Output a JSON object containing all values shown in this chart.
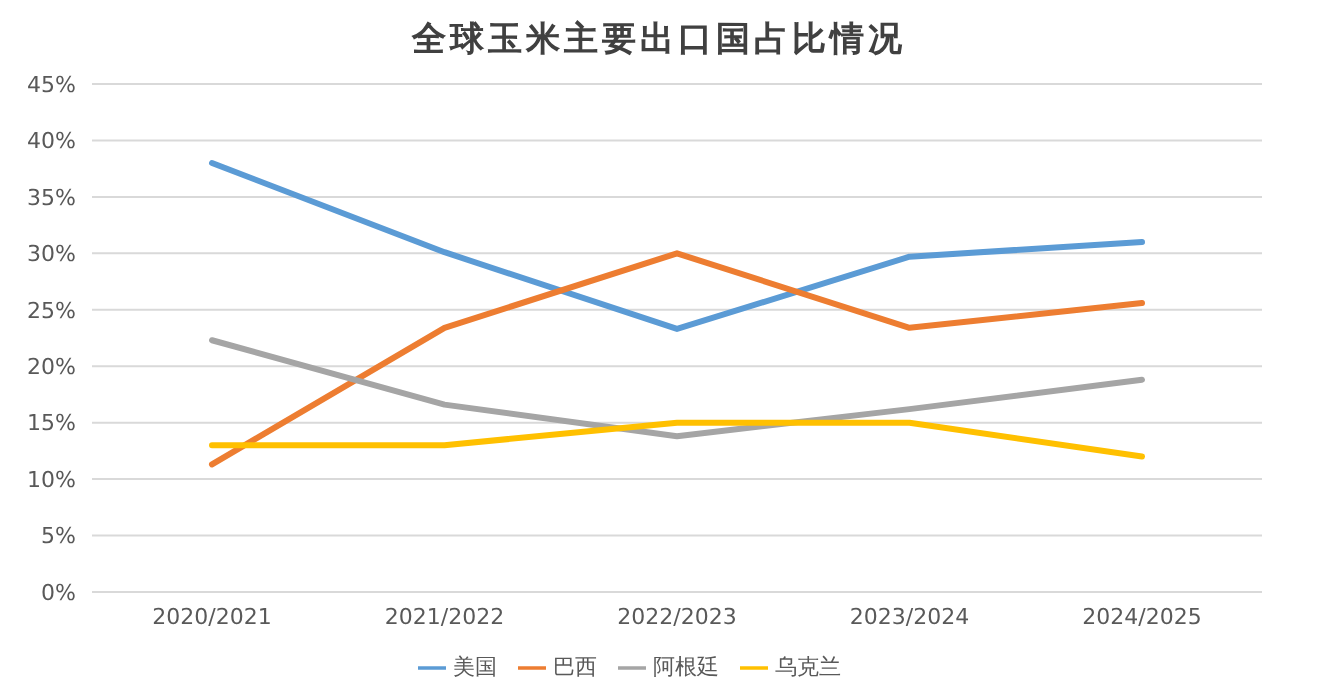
{
  "chart_data": {
    "type": "line",
    "title": "全球玉米主要出口国占比情况",
    "categories": [
      "2020/2021",
      "2021/2022",
      "2022/2023",
      "2023/2024",
      "2024/2025"
    ],
    "series": [
      {
        "name": "美国",
        "color": "#5b9bd5",
        "values": [
          38,
          30.1,
          23.3,
          29.7,
          31
        ]
      },
      {
        "name": "巴西",
        "color": "#ed7d31",
        "values": [
          11.3,
          23.4,
          30,
          23.4,
          25.6
        ]
      },
      {
        "name": "阿根廷",
        "color": "#a5a5a5",
        "values": [
          22.3,
          16.6,
          13.8,
          16.2,
          18.8
        ]
      },
      {
        "name": "乌克兰",
        "color": "#ffc000",
        "values": [
          13,
          13,
          15,
          15,
          12
        ]
      }
    ],
    "ylim": [
      0,
      45
    ],
    "yticks": [
      {
        "value": 0,
        "label": "0%"
      },
      {
        "value": 5,
        "label": "5%"
      },
      {
        "value": 10,
        "label": "10%"
      },
      {
        "value": 15,
        "label": "15%"
      },
      {
        "value": 20,
        "label": "20%"
      },
      {
        "value": 25,
        "label": "25%"
      },
      {
        "value": 30,
        "label": "30%"
      },
      {
        "value": 35,
        "label": "35%"
      },
      {
        "value": 40,
        "label": "40%"
      },
      {
        "value": 45,
        "label": "45%"
      }
    ],
    "grid": "y",
    "legend": "bottom",
    "marker": "none",
    "line_style": "solid"
  }
}
